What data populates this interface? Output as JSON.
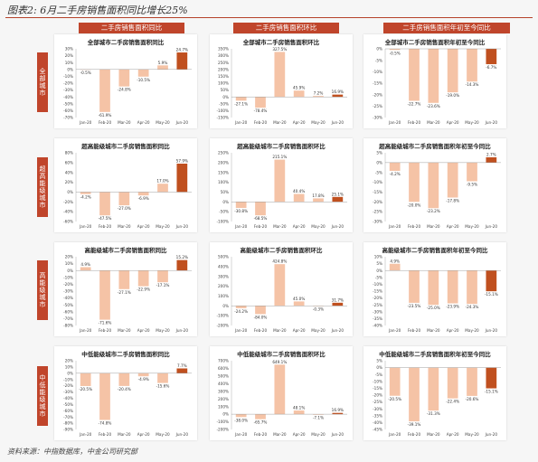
{
  "figure_title": "图表2: 6月二手房销售面积同比增长25%",
  "column_headers": [
    "二手房销售面积同比",
    "二手房销售面积环比",
    "二手房销售面积年初至今同比"
  ],
  "row_labels": [
    "全部城市",
    "超高能级城市",
    "高能级城市",
    "中低能级城市"
  ],
  "source": "资料来源：中指数据库，中金公司研究部",
  "colors": {
    "bar_light": "#f5c3a6",
    "bar_dark": "#c0501f",
    "header": "#c0452b"
  },
  "chart_data": [
    {
      "type": "bar",
      "title": "全部城市二手房销售面积同比",
      "categories": [
        "Jan-20",
        "Feb-20",
        "Mar-20",
        "Apr-20",
        "May-20",
        "Jun-20"
      ],
      "values": [
        -0.5,
        -61.9,
        -24.8,
        -10.5,
        5.9,
        24.7
      ],
      "labels": [
        "-0.5%",
        "-61.9%",
        "-24.8%",
        "-10.5%",
        "5.9%",
        "24.7%"
      ],
      "ylim": [
        -70,
        30
      ],
      "ticks": [
        30,
        20,
        10,
        0,
        -10,
        -20,
        -30,
        -40,
        -50,
        -60,
        -70
      ]
    },
    {
      "type": "bar",
      "title": "全部城市二手房销售面积环比",
      "categories": [
        "Jan-20",
        "Feb-20",
        "Mar-20",
        "Apr-20",
        "May-20",
        "Jun-20"
      ],
      "values": [
        -27.1,
        -78.4,
        327.5,
        45.9,
        7.2,
        16.9
      ],
      "labels": [
        "-27.1%",
        "-78.4%",
        "327.5%",
        "45.9%",
        "7.2%",
        "16.9%"
      ],
      "ylim": [
        -150,
        350
      ],
      "ticks": [
        350,
        300,
        250,
        200,
        150,
        100,
        50,
        0,
        -50,
        -100,
        -150
      ]
    },
    {
      "type": "bar",
      "title": "全部城市二手房销售面积年初至今同比",
      "categories": [
        "Jan-20",
        "Feb-20",
        "Mar-20",
        "Apr-20",
        "May-20",
        "Jun-20"
      ],
      "values": [
        -0.5,
        -22.7,
        -23.6,
        -19.0,
        -14.3,
        -6.7
      ],
      "labels": [
        "-0.5%",
        "-22.7%",
        "-23.6%",
        "-19.0%",
        "-14.3%",
        "-6.7%"
      ],
      "ylim": [
        -30,
        0
      ],
      "ticks": [
        0,
        -5,
        -10,
        -15,
        -20,
        -25,
        -30
      ]
    },
    {
      "type": "bar",
      "title": "超高能级城市二手房销售面积同比",
      "categories": [
        "Jan-20",
        "Feb-20",
        "Mar-20",
        "Apr-20",
        "May-20",
        "Jun-20"
      ],
      "values": [
        -4.2,
        -47.5,
        -27.0,
        -6.9,
        17.0,
        57.9
      ],
      "labels": [
        "-4.2%",
        "-47.5%",
        "-27.0%",
        "-6.9%",
        "17.0%",
        "57.9%"
      ],
      "ylim": [
        -60,
        80
      ],
      "ticks": [
        80,
        60,
        40,
        20,
        0,
        -20,
        -40,
        -60
      ]
    },
    {
      "type": "bar",
      "title": "超高能级城市二手房销售面积环比",
      "categories": [
        "Jan-20",
        "Feb-20",
        "Mar-20",
        "Apr-20",
        "May-20",
        "Jun-20"
      ],
      "values": [
        -30.8,
        -68.5,
        215.1,
        40.4,
        17.8,
        25.1
      ],
      "labels": [
        "-30.8%",
        "-68.5%",
        "215.1%",
        "40.4%",
        "17.8%",
        "25.1%"
      ],
      "ylim": [
        -100,
        250
      ],
      "ticks": [
        250,
        200,
        150,
        100,
        50,
        0,
        -50,
        -100
      ]
    },
    {
      "type": "bar",
      "title": "超高能级城市二手房销售面积年初至今同比",
      "categories": [
        "Jan-20",
        "Feb-20",
        "Mar-20",
        "Apr-20",
        "May-20",
        "Jun-20"
      ],
      "values": [
        -4.2,
        -20.0,
        -23.2,
        -17.8,
        -9.5,
        2.7
      ],
      "labels": [
        "-4.2%",
        "-20.0%",
        "-23.2%",
        "-17.8%",
        "-9.5%",
        "2.7%"
      ],
      "ylim": [
        -30,
        5
      ],
      "ticks": [
        5,
        0,
        -5,
        -10,
        -15,
        -20,
        -25,
        -30
      ]
    },
    {
      "type": "bar",
      "title": "高能级城市二手房销售面积同比",
      "categories": [
        "Jan-20",
        "Feb-20",
        "Mar-20",
        "Apr-20",
        "May-20",
        "Jun-20"
      ],
      "values": [
        4.9,
        -71.6,
        -27.1,
        -22.9,
        -17.1,
        15.2
      ],
      "labels": [
        "4.9%",
        "-71.6%",
        "-27.1%",
        "-22.9%",
        "-17.1%",
        "15.2%"
      ],
      "ylim": [
        -80,
        20
      ],
      "ticks": [
        20,
        10,
        0,
        -10,
        -20,
        -30,
        -40,
        -50,
        -60,
        -70,
        -80
      ]
    },
    {
      "type": "bar",
      "title": "高能级城市二手房销售面积环比",
      "categories": [
        "Jan-20",
        "Feb-20",
        "Mar-20",
        "Apr-20",
        "May-20",
        "Jun-20"
      ],
      "values": [
        -24.2,
        -84.0,
        424.8,
        45.0,
        -0.3,
        31.7
      ],
      "labels": [
        "-24.2%",
        "-84.0%",
        "424.8%",
        "45.0%",
        "-0.3%",
        "31.7%"
      ],
      "ylim": [
        -200,
        500
      ],
      "ticks": [
        500,
        400,
        300,
        200,
        100,
        0,
        -100,
        -200
      ]
    },
    {
      "type": "bar",
      "title": "高能级城市二手房销售面积年初至今同比",
      "categories": [
        "Jan-20",
        "Feb-20",
        "Mar-20",
        "Apr-20",
        "May-20",
        "Jun-20"
      ],
      "values": [
        4.9,
        -23.5,
        -25.0,
        -23.9,
        -24.3,
        -15.1
      ],
      "labels": [
        "4.9%",
        "-23.5%",
        "-25.0%",
        "-23.9%",
        "-24.3%",
        "-15.1%"
      ],
      "ylim": [
        -40,
        10
      ],
      "ticks": [
        10,
        5,
        0,
        -5,
        -10,
        -15,
        -20,
        -25,
        -30,
        -35,
        -40
      ]
    },
    {
      "type": "bar",
      "title": "中低能级城市二手房销售面积同比",
      "categories": [
        "Jan-20",
        "Feb-20",
        "Mar-20",
        "Apr-20",
        "May-20",
        "Jun-20"
      ],
      "values": [
        -20.5,
        -74.8,
        -20.4,
        -4.9,
        -15.6,
        7.7
      ],
      "labels": [
        "-20.5%",
        "-74.8%",
        "-20.4%",
        "-4.9%",
        "-15.6%",
        "7.7%"
      ],
      "ylim": [
        -90,
        20
      ],
      "ticks": [
        20,
        10,
        0,
        -10,
        -20,
        -30,
        -40,
        -50,
        -60,
        -70,
        -80,
        -90
      ]
    },
    {
      "type": "bar",
      "title": "中低能级城市二手房销售面积环比",
      "categories": [
        "Jan-20",
        "Feb-20",
        "Mar-20",
        "Apr-20",
        "May-20",
        "Jun-20"
      ],
      "values": [
        -38.0,
        -65.7,
        649.1,
        48.1,
        -7.1,
        16.9
      ],
      "labels": [
        "-38.0%",
        "-65.7%",
        "649.1%",
        "48.1%",
        "-7.1%",
        "16.9%"
      ],
      "ylim": [
        -200,
        700
      ],
      "ticks": [
        700,
        600,
        500,
        400,
        300,
        200,
        100,
        0,
        -100,
        -200
      ]
    },
    {
      "type": "bar",
      "title": "中低能级城市二手房销售面积年初至今同比",
      "categories": [
        "Jan-20",
        "Feb-20",
        "Mar-20",
        "Apr-20",
        "May-20",
        "Jun-20"
      ],
      "values": [
        -20.5,
        -39.1,
        -31.3,
        -22.4,
        -20.6,
        -15.1
      ],
      "labels": [
        "-20.5%",
        "-39.1%",
        "-31.3%",
        "-22.4%",
        "-20.6%",
        "-15.1%"
      ],
      "ylim": [
        -45,
        5
      ],
      "ticks": [
        5,
        0,
        -5,
        -10,
        -15,
        -20,
        -25,
        -30,
        -35,
        -40,
        -45
      ]
    }
  ]
}
